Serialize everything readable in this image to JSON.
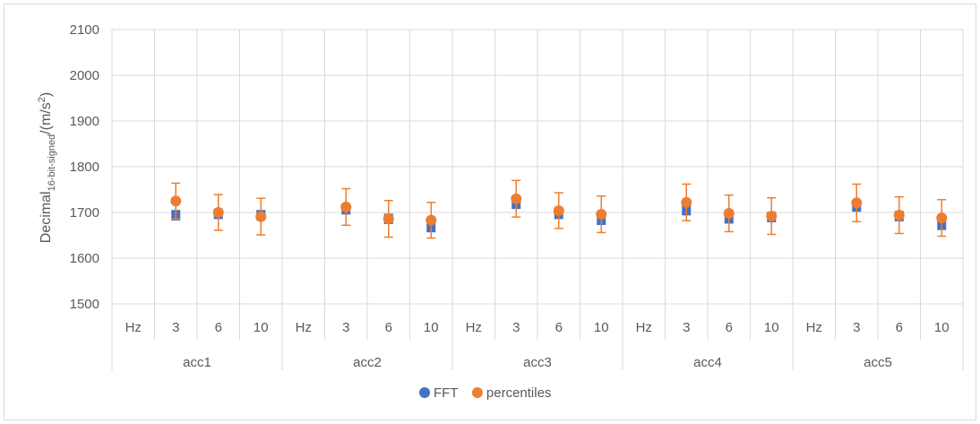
{
  "chart_data": {
    "type": "scatter",
    "ylabel": {
      "main": "Decimal",
      "subscript": "16-bit-signed",
      "unit_prefix": "/(m/s",
      "unit_sup": "2",
      "unit_suffix": ")"
    },
    "ylim": [
      1500,
      2100
    ],
    "yticks": [
      1500,
      1600,
      1700,
      1800,
      1900,
      2000,
      2100
    ],
    "grid": true,
    "legend_position": "bottom",
    "groups": [
      "acc1",
      "acc2",
      "acc3",
      "acc4",
      "acc5"
    ],
    "sub_categories": [
      "Hz",
      "3",
      "6",
      "10"
    ],
    "series": [
      {
        "name": "FFT",
        "color": "#4472c4",
        "values": [
          [
            null,
            1694,
            1697,
            1694
          ],
          [
            null,
            1707,
            1686,
            1668
          ],
          [
            null,
            1719,
            1697,
            1684
          ],
          [
            null,
            1705,
            1687,
            1690
          ],
          [
            null,
            1713,
            1692,
            1673
          ]
        ],
        "errors": [
          [
            null,
            10,
            10,
            10
          ],
          [
            null,
            10,
            10,
            10
          ],
          [
            null,
            10,
            10,
            10
          ],
          [
            null,
            10,
            10,
            10
          ],
          [
            null,
            10,
            10,
            10
          ]
        ]
      },
      {
        "name": "percentiles",
        "color": "#ed7d31",
        "values": [
          [
            null,
            1725,
            1700,
            1691
          ],
          [
            null,
            1712,
            1686,
            1683
          ],
          [
            null,
            1730,
            1704,
            1696
          ],
          [
            null,
            1722,
            1698,
            1692
          ],
          [
            null,
            1721,
            1694,
            1688
          ]
        ],
        "errors": [
          [
            null,
            39,
            39,
            40
          ],
          [
            null,
            40,
            40,
            39
          ],
          [
            null,
            40,
            39,
            40
          ],
          [
            null,
            40,
            40,
            40
          ],
          [
            null,
            41,
            40,
            40
          ]
        ]
      }
    ]
  }
}
